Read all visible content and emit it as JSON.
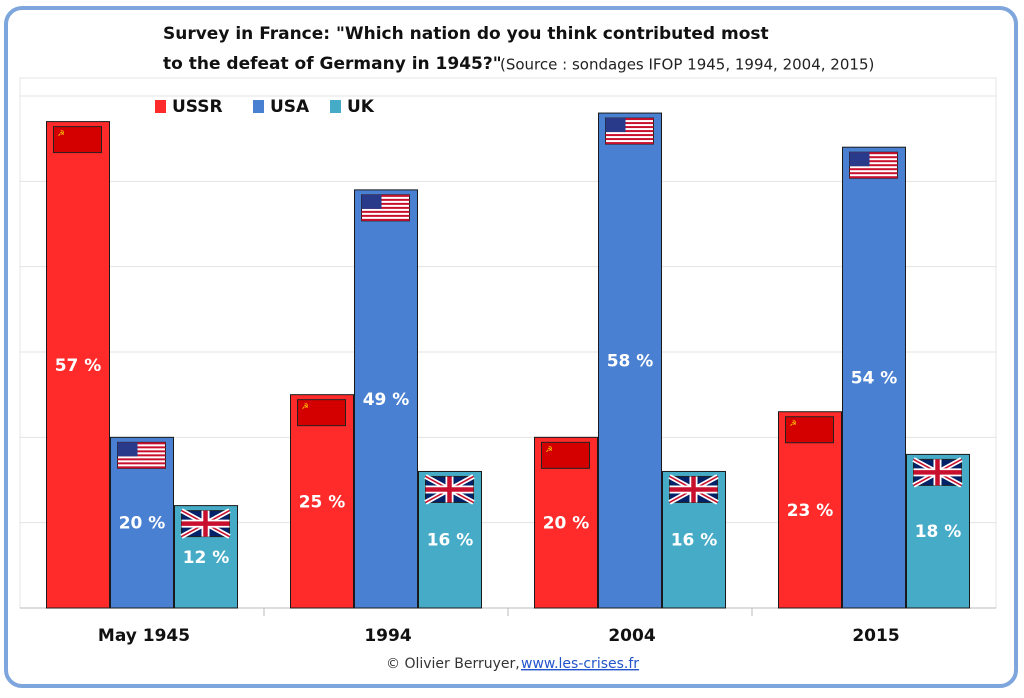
{
  "chart_data": {
    "type": "bar",
    "title": [
      "Survey in France: \"Which nation do you think contributed most",
      "to the defeat of Germany in 1945?\""
    ],
    "subtitle": "(Source : sondages IFOP 1945, 1994, 2004, 2015)",
    "categories": [
      "May 1945",
      "1994",
      "2004",
      "2015"
    ],
    "series": [
      {
        "name": "USSR",
        "color": "#ff2b2b",
        "values": [
          57,
          25,
          20,
          23
        ],
        "value_labels": [
          "57 %",
          "25 %",
          "20 %",
          "23 %"
        ]
      },
      {
        "name": "USA",
        "color": "#4a80d2",
        "values": [
          20,
          49,
          58,
          54
        ],
        "value_labels": [
          "20 %",
          "49 %",
          "58 %",
          "54 %"
        ]
      },
      {
        "name": "UK",
        "color": "#45abc6",
        "values": [
          12,
          16,
          16,
          18
        ],
        "value_labels": [
          "12 %",
          "16 %",
          "16 %",
          "18 %"
        ]
      }
    ],
    "ylim": [
      0,
      60
    ],
    "yticks": [
      0,
      10,
      20,
      30,
      40,
      50,
      60
    ],
    "grid": true,
    "credit": "© Olivier Berruyer,",
    "link": "www.les-crises.fr"
  }
}
